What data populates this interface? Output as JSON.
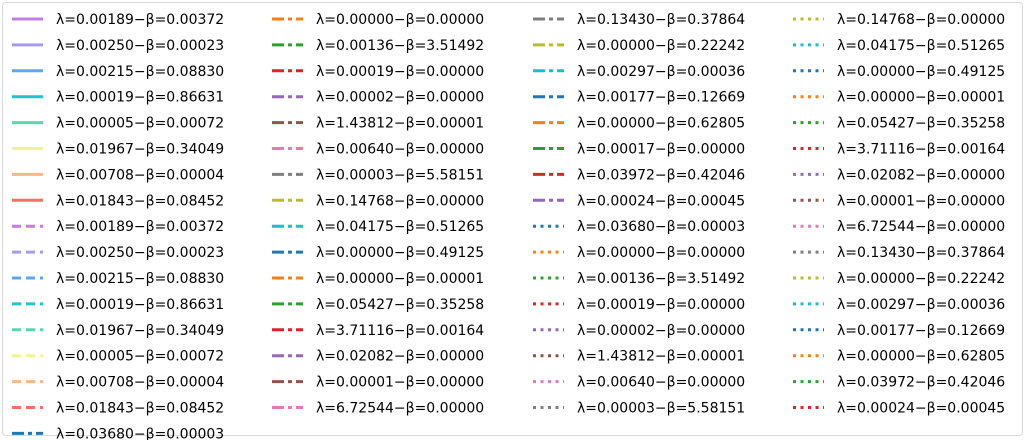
{
  "chart_data": {
    "type": "line",
    "title": "",
    "legend_position": "full-figure",
    "legend_columns": 4,
    "series": [
      {
        "name": "λ=0.00189−β=0.00372",
        "color": "#c27ee6",
        "style": "solid"
      },
      {
        "name": "λ=0.00250−β=0.00023",
        "color": "#a99af0",
        "style": "solid"
      },
      {
        "name": "λ=0.00215−β=0.08830",
        "color": "#60a6ef",
        "style": "solid"
      },
      {
        "name": "λ=0.00019−β=0.86631",
        "color": "#1fc4cc",
        "style": "solid"
      },
      {
        "name": "λ=0.00005−β=0.00072",
        "color": "#55dba9",
        "style": "solid"
      },
      {
        "name": "λ=0.01967−β=0.34049",
        "color": "#f1f493",
        "style": "solid"
      },
      {
        "name": "λ=0.00708−β=0.00004",
        "color": "#fbb68b",
        "style": "solid"
      },
      {
        "name": "λ=0.01843−β=0.08452",
        "color": "#f26f62",
        "style": "solid"
      },
      {
        "name": "λ=0.00189−β=0.00372",
        "color": "#c27ee6",
        "style": "dashed"
      },
      {
        "name": "λ=0.00250−β=0.00023",
        "color": "#a99af0",
        "style": "dashed"
      },
      {
        "name": "λ=0.00215−β=0.08830",
        "color": "#60a6ef",
        "style": "dashed"
      },
      {
        "name": "λ=0.00019−β=0.86631",
        "color": "#1fc4cc",
        "style": "dashed"
      },
      {
        "name": "λ=0.01967−β=0.34049",
        "color": "#55dba9",
        "style": "dashed"
      },
      {
        "name": "λ=0.00005−β=0.00072",
        "color": "#f1f493",
        "style": "dashed"
      },
      {
        "name": "λ=0.00708−β=0.00004",
        "color": "#fbb68b",
        "style": "dashed"
      },
      {
        "name": "λ=0.01843−β=0.08452",
        "color": "#f26f62",
        "style": "dashed"
      },
      {
        "name": "λ=0.03680−β=0.00003",
        "color": "#1f77b4",
        "style": "dashdot"
      },
      {
        "name": "λ=0.00000−β=0.00000",
        "color": "#ff7f0e",
        "style": "dashdot"
      },
      {
        "name": "λ=0.00136−β=3.51492",
        "color": "#2ca02c",
        "style": "dashdot"
      },
      {
        "name": "λ=0.00019−β=0.00000",
        "color": "#d62728",
        "style": "dashdot"
      },
      {
        "name": "λ=0.00002−β=0.00000",
        "color": "#9467bd",
        "style": "dashdot"
      },
      {
        "name": "λ=1.43812−β=0.00001",
        "color": "#8c564b",
        "style": "dashdot"
      },
      {
        "name": "λ=0.00640−β=0.00000",
        "color": "#e377c2",
        "style": "dashdot"
      },
      {
        "name": "λ=0.00003−β=5.58151",
        "color": "#7f7f7f",
        "style": "dashdot"
      },
      {
        "name": "λ=0.14768−β=0.00000",
        "color": "#bcbd22",
        "style": "dashdot"
      },
      {
        "name": "λ=0.04175−β=0.51265",
        "color": "#17becf",
        "style": "dashdot"
      },
      {
        "name": "λ=0.00000−β=0.49125",
        "color": "#1f77b4",
        "style": "dashdot"
      },
      {
        "name": "λ=0.00000−β=0.00001",
        "color": "#ff7f0e",
        "style": "dashdot"
      },
      {
        "name": "λ=0.05427−β=0.35258",
        "color": "#2ca02c",
        "style": "dashdot"
      },
      {
        "name": "λ=3.71116−β=0.00164",
        "color": "#d62728",
        "style": "dashdot"
      },
      {
        "name": "λ=0.02082−β=0.00000",
        "color": "#9467bd",
        "style": "dashdot"
      },
      {
        "name": "λ=0.00001−β=0.00000",
        "color": "#8c564b",
        "style": "dashdot"
      },
      {
        "name": "λ=6.72544−β=0.00000",
        "color": "#e377c2",
        "style": "dashdot"
      },
      {
        "name": "λ=0.13430−β=0.37864",
        "color": "#7f7f7f",
        "style": "dashdot"
      },
      {
        "name": "λ=0.00000−β=0.22242",
        "color": "#bcbd22",
        "style": "dashdot"
      },
      {
        "name": "λ=0.00297−β=0.00036",
        "color": "#17becf",
        "style": "dashdot"
      },
      {
        "name": "λ=0.00177−β=0.12669",
        "color": "#1f77b4",
        "style": "dashdot"
      },
      {
        "name": "λ=0.00000−β=0.62805",
        "color": "#ff7f0e",
        "style": "dashdot"
      },
      {
        "name": "λ=0.00017−β=0.00000",
        "color": "#2ca02c",
        "style": "dashdot"
      },
      {
        "name": "λ=0.03972−β=0.42046",
        "color": "#d62728",
        "style": "dashdot"
      },
      {
        "name": "λ=0.00024−β=0.00045",
        "color": "#9467bd",
        "style": "dashdot"
      },
      {
        "name": "λ=0.03680−β=0.00003",
        "color": "#1f77b4",
        "style": "dotted"
      },
      {
        "name": "λ=0.00000−β=0.00000",
        "color": "#ff7f0e",
        "style": "dotted"
      },
      {
        "name": "λ=0.00136−β=3.51492",
        "color": "#2ca02c",
        "style": "dotted"
      },
      {
        "name": "λ=0.00019−β=0.00000",
        "color": "#d62728",
        "style": "dotted"
      },
      {
        "name": "λ=0.00002−β=0.00000",
        "color": "#9467bd",
        "style": "dotted"
      },
      {
        "name": "λ=1.43812−β=0.00001",
        "color": "#8c564b",
        "style": "dotted"
      },
      {
        "name": "λ=0.00640−β=0.00000",
        "color": "#e377c2",
        "style": "dotted"
      },
      {
        "name": "λ=0.00003−β=5.58151",
        "color": "#7f7f7f",
        "style": "dotted"
      },
      {
        "name": "λ=0.14768−β=0.00000",
        "color": "#bcbd22",
        "style": "dotted"
      },
      {
        "name": "λ=0.04175−β=0.51265",
        "color": "#17becf",
        "style": "dotted"
      },
      {
        "name": "λ=0.00000−β=0.49125",
        "color": "#1f77b4",
        "style": "dotted"
      },
      {
        "name": "λ=0.00000−β=0.00001",
        "color": "#ff7f0e",
        "style": "dotted"
      },
      {
        "name": "λ=0.05427−β=0.35258",
        "color": "#2ca02c",
        "style": "dotted"
      },
      {
        "name": "λ=3.71116−β=0.00164",
        "color": "#d62728",
        "style": "dotted"
      },
      {
        "name": "λ=0.02082−β=0.00000",
        "color": "#9467bd",
        "style": "dotted"
      },
      {
        "name": "λ=0.00001−β=0.00000",
        "color": "#8c564b",
        "style": "dotted"
      },
      {
        "name": "λ=6.72544−β=0.00000",
        "color": "#e377c2",
        "style": "dotted"
      },
      {
        "name": "λ=0.13430−β=0.37864",
        "color": "#7f7f7f",
        "style": "dotted"
      },
      {
        "name": "λ=0.00000−β=0.22242",
        "color": "#bcbd22",
        "style": "dotted"
      },
      {
        "name": "λ=0.00297−β=0.00036",
        "color": "#17becf",
        "style": "dotted"
      },
      {
        "name": "λ=0.00177−β=0.12669",
        "color": "#1f77b4",
        "style": "dotted"
      },
      {
        "name": "λ=0.00000−β=0.62805",
        "color": "#ff7f0e",
        "style": "dotted"
      },
      {
        "name": "λ=0.03972−β=0.42046",
        "color": "#2ca02c",
        "style": "dotted"
      },
      {
        "name": "λ=0.00024−β=0.00045",
        "color": "#d62728",
        "style": "dotted"
      }
    ]
  }
}
